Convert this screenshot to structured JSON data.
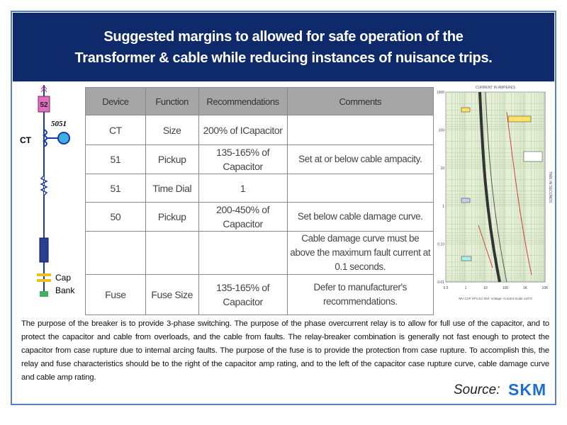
{
  "header": {
    "title_lines": [
      "Suggested margins to allowed for safe operation of the",
      "Transformer & cable while reducing instances of nuisance trips."
    ]
  },
  "diagram": {
    "breaker": "52",
    "relay": "5051",
    "ct": "CT",
    "cap": "Cap",
    "bank": "Bank"
  },
  "table": {
    "columns": [
      "Device",
      "Function",
      "Recommendations",
      "Comments"
    ],
    "rows": [
      [
        "CT",
        "Size",
        "200% of ICapacitor",
        ""
      ],
      [
        "51",
        "Pickup",
        "135-165% of Capacitor",
        "Set at or below cable ampacity."
      ],
      [
        "51",
        "Time Dial",
        "1",
        ""
      ],
      [
        "50",
        "Pickup",
        "200-450% of Capacitor",
        "Set below cable damage curve."
      ],
      [
        "",
        "",
        "",
        "Cable damage curve must be above the maximum fault current at 0.1 seconds."
      ],
      [
        "Fuse",
        "Fuse Size",
        "135-165% of Capacitor",
        "Defer to manufacturer's recommendations."
      ]
    ]
  },
  "tcc": {
    "x_label": "CURRENT IN AMPERES",
    "y_label": "TIME IN SECONDS",
    "xticks": [
      "0.5",
      "1",
      "10",
      "100",
      "1K",
      "10K"
    ],
    "yticks": [
      "1000",
      "100",
      "10",
      "1",
      "0.10",
      "0.01"
    ],
    "footer": "MV CAP SFU.tcc  Ref. Voltage:  Current Scale x10^0"
  },
  "body": "The purpose of the breaker is to provide 3-phase switching. The purpose of the phase overcurrent relay is to allow for full use of the capacitor, and to protect the capacitor and cable from overloads, and the cable from faults. The relay-breaker combination is generally not fast enough to protect the capacitor from case rupture due to internal arcing faults. The purpose of the fuse is to provide the protection from case rupture. To accomplish this, the relay and fuse characteristics should be to the right of the capacitor amp rating, and to the left of the capacitor case rupture curve, cable damage curve and cable amp rating.",
  "source": {
    "label": "Source:",
    "logo": "SKM"
  }
}
